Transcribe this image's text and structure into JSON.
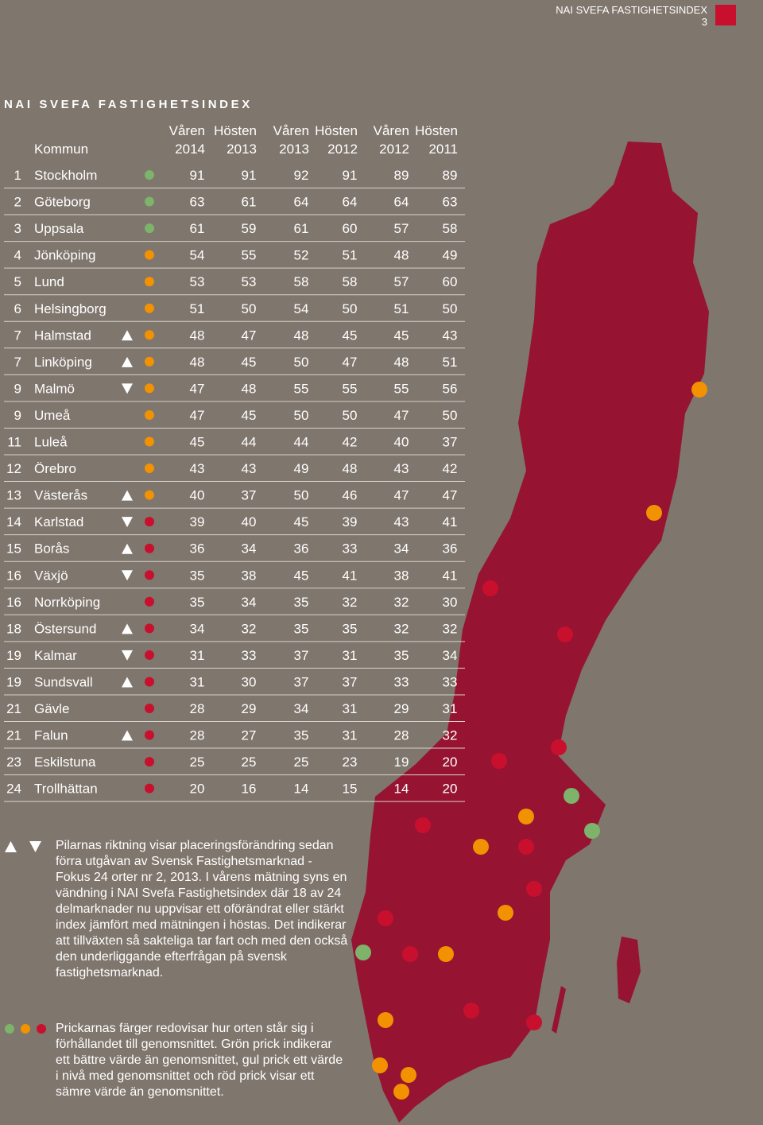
{
  "header": {
    "title": "NAI SVEFA FASTIGHETSINDEX",
    "page": "3"
  },
  "table": {
    "title": "NAI SVEFA FASTIGHETSINDEX",
    "kommun": "Kommun",
    "columns": [
      {
        "line1": "Våren",
        "line2": "2014"
      },
      {
        "line1": "Hösten",
        "line2": "2013"
      },
      {
        "line1": "Våren",
        "line2": "2013"
      },
      {
        "line1": "Hösten",
        "line2": "2012"
      },
      {
        "line1": "Våren",
        "line2": "2012"
      },
      {
        "line1": "Hösten",
        "line2": "2011"
      }
    ],
    "rows": [
      {
        "rank": 1,
        "name": "Stockholm",
        "color": "#7db36a",
        "values": [
          91,
          91,
          92,
          91,
          89,
          89
        ]
      },
      {
        "rank": 2,
        "name": "Göteborg",
        "color": "#7db36a",
        "values": [
          63,
          61,
          64,
          64,
          64,
          63
        ]
      },
      {
        "rank": 3,
        "name": "Uppsala",
        "color": "#7db36a",
        "values": [
          61,
          59,
          61,
          60,
          57,
          58
        ]
      },
      {
        "rank": 4,
        "name": "Jönköping",
        "color": "#f39200",
        "values": [
          54,
          55,
          52,
          51,
          48,
          49
        ]
      },
      {
        "rank": 5,
        "name": "Lund",
        "color": "#f39200",
        "values": [
          53,
          53,
          58,
          58,
          57,
          60
        ]
      },
      {
        "rank": 6,
        "name": "Helsingborg",
        "color": "#f39200",
        "values": [
          51,
          50,
          54,
          50,
          51,
          50
        ]
      },
      {
        "rank": 7,
        "name": "Halmstad",
        "arrow": "up",
        "color": "#f39200",
        "values": [
          48,
          47,
          48,
          45,
          45,
          43
        ]
      },
      {
        "rank": 7,
        "name": "Linköping",
        "arrow": "up",
        "color": "#f39200",
        "values": [
          48,
          45,
          50,
          47,
          48,
          51
        ]
      },
      {
        "rank": 9,
        "name": "Malmö",
        "arrow": "down",
        "color": "#f39200",
        "values": [
          47,
          48,
          55,
          55,
          55,
          56
        ]
      },
      {
        "rank": 9,
        "name": "Umeå",
        "color": "#f39200",
        "values": [
          47,
          45,
          50,
          50,
          47,
          50
        ]
      },
      {
        "rank": 11,
        "name": "Luleå",
        "color": "#f39200",
        "values": [
          45,
          44,
          44,
          42,
          40,
          37
        ]
      },
      {
        "rank": 12,
        "name": "Örebro",
        "color": "#f39200",
        "values": [
          43,
          43,
          49,
          48,
          43,
          42
        ]
      },
      {
        "rank": 13,
        "name": "Västerås",
        "arrow": "up",
        "color": "#f39200",
        "values": [
          40,
          37,
          50,
          46,
          47,
          47
        ]
      },
      {
        "rank": 14,
        "name": "Karlstad",
        "arrow": "down",
        "color": "#c8102e",
        "values": [
          39,
          40,
          45,
          39,
          43,
          41
        ]
      },
      {
        "rank": 15,
        "name": "Borås",
        "arrow": "up",
        "color": "#c8102e",
        "values": [
          36,
          34,
          36,
          33,
          34,
          36
        ]
      },
      {
        "rank": 16,
        "name": "Växjö",
        "arrow": "down",
        "color": "#c8102e",
        "values": [
          35,
          38,
          45,
          41,
          38,
          41
        ]
      },
      {
        "rank": 16,
        "name": "Norrköping",
        "color": "#c8102e",
        "values": [
          35,
          34,
          35,
          32,
          32,
          30
        ]
      },
      {
        "rank": 18,
        "name": "Östersund",
        "arrow": "up",
        "color": "#c8102e",
        "values": [
          34,
          32,
          35,
          35,
          32,
          32
        ]
      },
      {
        "rank": 19,
        "name": "Kalmar",
        "arrow": "down",
        "color": "#c8102e",
        "values": [
          31,
          33,
          37,
          31,
          35,
          34
        ]
      },
      {
        "rank": 19,
        "name": "Sundsvall",
        "arrow": "up",
        "color": "#c8102e",
        "values": [
          31,
          30,
          37,
          37,
          33,
          33
        ]
      },
      {
        "rank": 21,
        "name": "Gävle",
        "color": "#c8102e",
        "values": [
          28,
          29,
          34,
          31,
          29,
          31
        ]
      },
      {
        "rank": 21,
        "name": "Falun",
        "arrow": "up",
        "color": "#c8102e",
        "values": [
          28,
          27,
          35,
          31,
          28,
          32
        ]
      },
      {
        "rank": 23,
        "name": "Eskilstuna",
        "color": "#c8102e",
        "values": [
          25,
          25,
          25,
          23,
          19,
          20
        ]
      },
      {
        "rank": 24,
        "name": "Trollhättan",
        "color": "#c8102e",
        "values": [
          20,
          16,
          14,
          15,
          14,
          20
        ]
      }
    ]
  },
  "notes": [
    "Pilarnas riktning visar placeringsförändring sedan förra utgåvan av Svensk Fastighets­marknad - Fokus 24 orter nr 2, 2013. I vårens mätning syns en vändning i NAI Svefa Fastighetsindex där 18 av 24 delmarknader nu uppvisar ett oförändrat eller stärkt index jämfört med mätningen i höstas. Det indikerar att tillväxten så sakteliga tar fart och med den också den underliggande efterfrågan på svensk fastighetsmarknad.",
    "Prickarnas färger redovisar hur orten står sig i förhållandet till genomsnittet. Grön prick indikerar ett bättre värde än genomsnittet, gul prick ett värde i nivå med genomsnittet och röd prick visar ett sämre värde än genomsnittet."
  ]
}
